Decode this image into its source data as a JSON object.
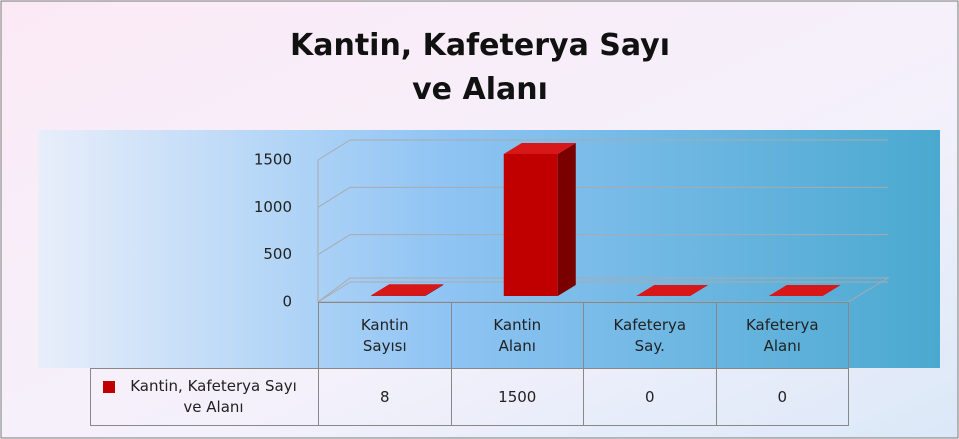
{
  "chart_data": {
    "type": "bar",
    "title": "Kantin, Kafeterya Sayı ve Alanı",
    "categories": [
      "Kantin Sayısı",
      "Kantin Alanı",
      "Kafeterya Say.",
      "Kafeterya Alanı"
    ],
    "series": [
      {
        "name": "Kantin, Kafeterya Sayı ve Alanı",
        "color": "#c00000",
        "values": [
          8,
          1500,
          0,
          0
        ]
      }
    ],
    "ylim": [
      0,
      1500
    ],
    "yticks": [
      0,
      500,
      1000,
      1500
    ],
    "grid": true,
    "data_table": true
  }
}
